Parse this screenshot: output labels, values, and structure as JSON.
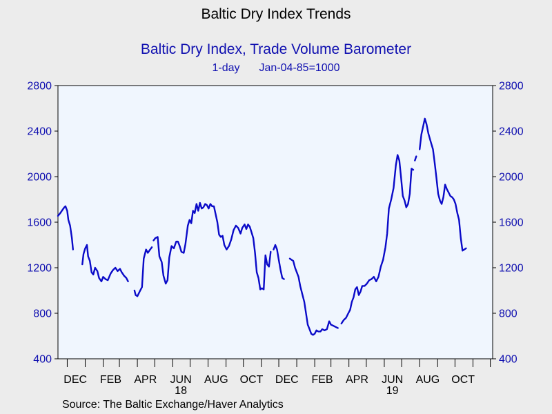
{
  "header": {
    "title": "Baltic Dry Index Trends",
    "subtitle": "Baltic Dry Index, Trade Volume Barometer",
    "frequency": "1-day",
    "base": "Jan-04-85=1000"
  },
  "footer": {
    "source": "Source:  The Baltic Exchange/Haver Analytics"
  },
  "colors": {
    "line": "#0a0ac8",
    "axis_text": "#1010b0",
    "plot_bg": "#f0f6fe",
    "page_bg": "#ececec"
  },
  "chart_data": {
    "type": "line",
    "title": "Baltic Dry Index, Trade Volume Barometer",
    "ylim": [
      400,
      2800
    ],
    "yticks": [
      400,
      800,
      1200,
      1600,
      2000,
      2400,
      2800
    ],
    "ytick_labels": [
      "400",
      "800",
      "1200",
      "1600",
      "2000",
      "2400",
      "2800"
    ],
    "right_axis_mirrored": true,
    "grid": false,
    "x_range": [
      "2017-11-15",
      "2019-12-05"
    ],
    "x_month_ticks": [
      "2017-12-01",
      "2018-01-01",
      "2018-02-01",
      "2018-03-01",
      "2018-04-01",
      "2018-05-01",
      "2018-06-01",
      "2018-07-01",
      "2018-08-01",
      "2018-09-01",
      "2018-10-01",
      "2018-11-01",
      "2018-12-01",
      "2019-01-01",
      "2019-02-01",
      "2019-03-01",
      "2019-04-01",
      "2019-05-01",
      "2019-06-01",
      "2019-07-01",
      "2019-08-01",
      "2019-09-01",
      "2019-10-01",
      "2019-11-01",
      "2019-12-01"
    ],
    "x_labels": [
      {
        "label": "DEC",
        "date": "2017-12-15"
      },
      {
        "label": "FEB",
        "date": "2018-02-14"
      },
      {
        "label": "APR",
        "date": "2018-04-15"
      },
      {
        "label": "JUN",
        "date": "2018-06-15"
      },
      {
        "label": "AUG",
        "date": "2018-08-15"
      },
      {
        "label": "OCT",
        "date": "2018-10-15"
      },
      {
        "label": "DEC",
        "date": "2018-12-15"
      },
      {
        "label": "FEB",
        "date": "2019-02-14"
      },
      {
        "label": "APR",
        "date": "2019-04-15"
      },
      {
        "label": "JUN",
        "date": "2019-06-15"
      },
      {
        "label": "AUG",
        "date": "2019-08-15"
      },
      {
        "label": "OCT",
        "date": "2019-10-15"
      }
    ],
    "year_labels": [
      {
        "label": "18",
        "date": "2018-06-15"
      },
      {
        "label": "19",
        "date": "2019-06-15"
      }
    ],
    "series": [
      {
        "segments": [
          [
            [
              "2017-11-15",
              1655
            ],
            [
              "2017-11-19",
              1680
            ],
            [
              "2017-11-23",
              1710
            ],
            [
              "2017-11-26",
              1730
            ],
            [
              "2017-11-28",
              1740
            ],
            [
              "2017-12-01",
              1700
            ],
            [
              "2017-12-03",
              1620
            ],
            [
              "2017-12-06",
              1570
            ],
            [
              "2017-12-09",
              1460
            ],
            [
              "2017-12-11",
              1360
            ]
          ],
          [
            [
              "2017-12-27",
              1230
            ],
            [
              "2017-12-29",
              1320
            ],
            [
              "2018-01-01",
              1370
            ],
            [
              "2018-01-04",
              1400
            ],
            [
              "2018-01-06",
              1300
            ],
            [
              "2018-01-09",
              1260
            ],
            [
              "2018-01-12",
              1160
            ],
            [
              "2018-01-15",
              1140
            ],
            [
              "2018-01-18",
              1200
            ],
            [
              "2018-01-22",
              1170
            ],
            [
              "2018-01-25",
              1110
            ],
            [
              "2018-01-29",
              1080
            ],
            [
              "2018-02-01",
              1120
            ],
            [
              "2018-02-05",
              1100
            ],
            [
              "2018-02-09",
              1090
            ],
            [
              "2018-02-14",
              1150
            ],
            [
              "2018-02-18",
              1180
            ],
            [
              "2018-02-22",
              1200
            ],
            [
              "2018-02-26",
              1170
            ],
            [
              "2018-03-02",
              1190
            ],
            [
              "2018-03-05",
              1160
            ],
            [
              "2018-03-09",
              1130
            ],
            [
              "2018-03-13",
              1110
            ],
            [
              "2018-03-16",
              1080
            ]
          ],
          [
            [
              "2018-03-27",
              1000
            ],
            [
              "2018-03-29",
              960
            ],
            [
              "2018-04-01",
              950
            ],
            [
              "2018-04-05",
              990
            ],
            [
              "2018-04-09",
              1030
            ],
            [
              "2018-04-12",
              1280
            ],
            [
              "2018-04-16",
              1360
            ],
            [
              "2018-04-19",
              1330
            ],
            [
              "2018-04-23",
              1360
            ],
            [
              "2018-04-26",
              1380
            ]
          ],
          [
            [
              "2018-04-29",
              1440
            ],
            [
              "2018-05-02",
              1460
            ],
            [
              "2018-05-06",
              1470
            ],
            [
              "2018-05-09",
              1300
            ],
            [
              "2018-05-13",
              1250
            ],
            [
              "2018-05-16",
              1130
            ],
            [
              "2018-05-20",
              1060
            ],
            [
              "2018-05-23",
              1090
            ],
            [
              "2018-05-26",
              1290
            ],
            [
              "2018-05-30",
              1390
            ],
            [
              "2018-06-03",
              1370
            ],
            [
              "2018-06-07",
              1430
            ],
            [
              "2018-06-10",
              1430
            ],
            [
              "2018-06-13",
              1390
            ],
            [
              "2018-06-16",
              1340
            ],
            [
              "2018-06-20",
              1330
            ],
            [
              "2018-06-23",
              1410
            ],
            [
              "2018-06-27",
              1570
            ],
            [
              "2018-06-30",
              1620
            ],
            [
              "2018-07-03",
              1590
            ],
            [
              "2018-07-06",
              1700
            ],
            [
              "2018-07-09",
              1680
            ],
            [
              "2018-07-12",
              1760
            ],
            [
              "2018-07-15",
              1700
            ],
            [
              "2018-07-18",
              1770
            ],
            [
              "2018-07-21",
              1720
            ],
            [
              "2018-07-24",
              1730
            ],
            [
              "2018-07-27",
              1760
            ],
            [
              "2018-07-30",
              1750
            ],
            [
              "2018-08-02",
              1720
            ],
            [
              "2018-08-05",
              1760
            ],
            [
              "2018-08-08",
              1740
            ],
            [
              "2018-08-11",
              1740
            ],
            [
              "2018-08-14",
              1670
            ],
            [
              "2018-08-17",
              1600
            ],
            [
              "2018-08-20",
              1490
            ],
            [
              "2018-08-23",
              1470
            ],
            [
              "2018-08-26",
              1480
            ],
            [
              "2018-08-29",
              1400
            ],
            [
              "2018-09-02",
              1360
            ],
            [
              "2018-09-06",
              1390
            ],
            [
              "2018-09-10",
              1450
            ],
            [
              "2018-09-14",
              1530
            ],
            [
              "2018-09-18",
              1570
            ],
            [
              "2018-09-22",
              1550
            ],
            [
              "2018-09-26",
              1500
            ],
            [
              "2018-09-29",
              1550
            ],
            [
              "2018-10-03",
              1580
            ],
            [
              "2018-10-06",
              1540
            ],
            [
              "2018-10-09",
              1580
            ],
            [
              "2018-10-12",
              1560
            ],
            [
              "2018-10-15",
              1510
            ],
            [
              "2018-10-18",
              1460
            ],
            [
              "2018-10-21",
              1330
            ],
            [
              "2018-10-24",
              1160
            ],
            [
              "2018-10-27",
              1110
            ],
            [
              "2018-10-30",
              1010
            ],
            [
              "2018-11-02",
              1020
            ],
            [
              "2018-11-05",
              1010
            ],
            [
              "2018-11-08",
              1310
            ],
            [
              "2018-11-11",
              1230
            ],
            [
              "2018-11-14",
              1210
            ],
            [
              "2018-11-17",
              1340
            ]
          ],
          [
            [
              "2018-11-22",
              1360
            ],
            [
              "2018-11-25",
              1400
            ],
            [
              "2018-11-28",
              1360
            ],
            [
              "2018-12-01",
              1270
            ],
            [
              "2018-12-04",
              1180
            ],
            [
              "2018-12-07",
              1110
            ],
            [
              "2018-12-10",
              1100
            ]
          ],
          [
            [
              "2018-12-20",
              1280
            ],
            [
              "2018-12-23",
              1270
            ],
            [
              "2018-12-26",
              1260
            ],
            [
              "2018-12-29",
              1200
            ],
            [
              "2019-01-01",
              1160
            ],
            [
              "2019-01-04",
              1120
            ],
            [
              "2019-01-07",
              1040
            ],
            [
              "2019-01-10",
              980
            ],
            [
              "2019-01-14",
              900
            ],
            [
              "2019-01-17",
              800
            ],
            [
              "2019-01-20",
              700
            ],
            [
              "2019-01-23",
              660
            ],
            [
              "2019-01-26",
              620
            ],
            [
              "2019-01-29",
              610
            ],
            [
              "2019-02-01",
              620
            ],
            [
              "2019-02-04",
              650
            ],
            [
              "2019-02-07",
              640
            ],
            [
              "2019-02-11",
              640
            ],
            [
              "2019-02-14",
              660
            ],
            [
              "2019-02-18",
              650
            ],
            [
              "2019-02-22",
              660
            ],
            [
              "2019-02-26",
              730
            ],
            [
              "2019-03-01",
              700
            ],
            [
              "2019-03-05",
              690
            ],
            [
              "2019-03-09",
              680
            ],
            [
              "2019-03-13",
              670
            ]
          ],
          [
            [
              "2019-03-19",
              710
            ],
            [
              "2019-03-23",
              740
            ],
            [
              "2019-03-27",
              760
            ],
            [
              "2019-03-31",
              800
            ],
            [
              "2019-04-03",
              830
            ],
            [
              "2019-04-06",
              900
            ],
            [
              "2019-04-09",
              940
            ],
            [
              "2019-04-12",
              1010
            ],
            [
              "2019-04-15",
              1030
            ],
            [
              "2019-04-18",
              960
            ],
            [
              "2019-04-21",
              990
            ],
            [
              "2019-04-24",
              1040
            ],
            [
              "2019-04-28",
              1040
            ],
            [
              "2019-05-02",
              1060
            ],
            [
              "2019-05-06",
              1090
            ],
            [
              "2019-05-10",
              1100
            ],
            [
              "2019-05-14",
              1120
            ],
            [
              "2019-05-18",
              1080
            ],
            [
              "2019-05-22",
              1120
            ],
            [
              "2019-05-26",
              1210
            ],
            [
              "2019-05-30",
              1270
            ],
            [
              "2019-06-03",
              1380
            ],
            [
              "2019-06-06",
              1500
            ],
            [
              "2019-06-09",
              1720
            ],
            [
              "2019-06-13",
              1800
            ],
            [
              "2019-06-17",
              1900
            ],
            [
              "2019-06-21",
              2100
            ],
            [
              "2019-06-24",
              2190
            ],
            [
              "2019-06-27",
              2140
            ],
            [
              "2019-06-30",
              1990
            ],
            [
              "2019-07-03",
              1830
            ],
            [
              "2019-07-06",
              1790
            ],
            [
              "2019-07-09",
              1730
            ],
            [
              "2019-07-12",
              1760
            ],
            [
              "2019-07-15",
              1850
            ],
            [
              "2019-07-18",
              2070
            ],
            [
              "2019-07-21",
              2060
            ]
          ],
          [
            [
              "2019-07-25",
              2160
            ]
          ],
          [
            [
              "2019-08-01",
              2240
            ],
            [
              "2019-08-04",
              2370
            ],
            [
              "2019-08-07",
              2440
            ],
            [
              "2019-08-10",
              2510
            ],
            [
              "2019-08-13",
              2460
            ],
            [
              "2019-08-16",
              2380
            ],
            [
              "2019-08-20",
              2310
            ],
            [
              "2019-08-24",
              2240
            ],
            [
              "2019-08-27",
              2120
            ],
            [
              "2019-08-30",
              1990
            ],
            [
              "2019-09-02",
              1850
            ],
            [
              "2019-09-05",
              1790
            ],
            [
              "2019-09-08",
              1760
            ],
            [
              "2019-09-11",
              1820
            ],
            [
              "2019-09-14",
              1930
            ],
            [
              "2019-09-17",
              1890
            ],
            [
              "2019-09-20",
              1860
            ],
            [
              "2019-09-23",
              1830
            ],
            [
              "2019-09-26",
              1820
            ],
            [
              "2019-09-29",
              1800
            ],
            [
              "2019-10-02",
              1760
            ],
            [
              "2019-10-05",
              1680
            ],
            [
              "2019-10-08",
              1620
            ],
            [
              "2019-10-11",
              1460
            ],
            [
              "2019-10-14",
              1350
            ],
            [
              "2019-10-17",
              1360
            ],
            [
              "2019-10-20",
              1370
            ]
          ]
        ]
      }
    ]
  }
}
